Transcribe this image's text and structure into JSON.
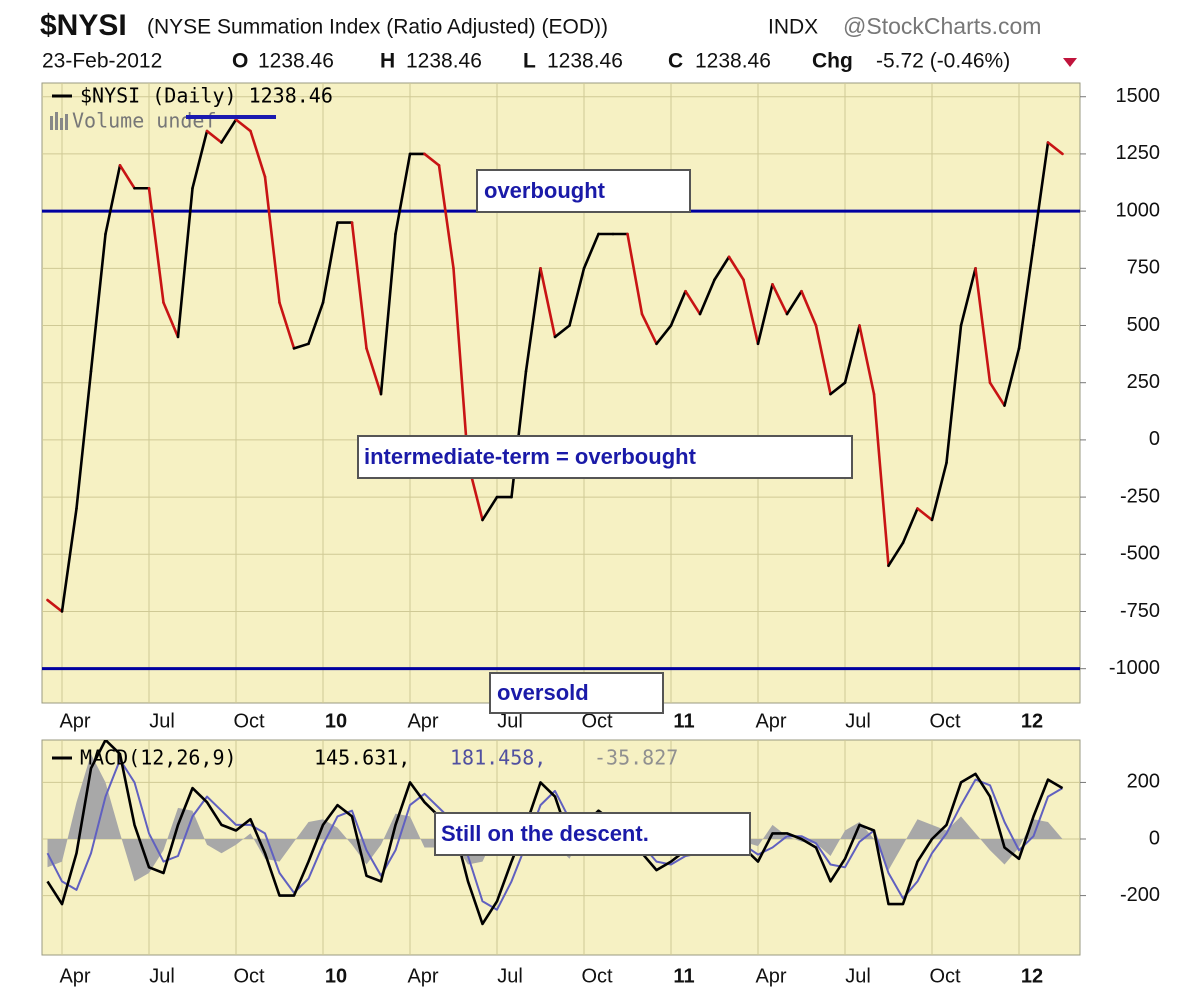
{
  "header": {
    "symbol": "$NYSI",
    "name": "(NYSE Summation Index (Ratio Adjusted) (EOD))",
    "exchange": "INDX",
    "source": "@StockCharts.com",
    "date": "23-Feb-2012",
    "open_key": "O",
    "open": "1238.46",
    "high_key": "H",
    "high": "1238.46",
    "low_key": "L",
    "low": "1238.46",
    "close_key": "C",
    "close": "1238.46",
    "change_key": "Chg",
    "change": "-5.72 (-0.46%)"
  },
  "chart_data": [
    {
      "type": "line",
      "categories": [
        null,
        "Apr",
        null,
        null,
        null,
        null,
        null,
        "Jul",
        null,
        null,
        null,
        null,
        null,
        "Oct",
        null,
        null,
        null,
        null,
        null,
        "10",
        null,
        null,
        null,
        null,
        null,
        "Apr",
        null,
        null,
        null,
        null,
        null,
        "Jul",
        null,
        null,
        null,
        null,
        null,
        "Oct",
        null,
        null,
        null,
        null,
        null,
        "11",
        null,
        null,
        null,
        null,
        null,
        "Apr",
        null,
        null,
        null,
        null,
        null,
        "Jul",
        null,
        null,
        null,
        null,
        null,
        "Oct",
        null,
        null,
        null,
        null,
        null,
        "12",
        null,
        null,
        null
      ],
      "series": [
        {
          "name": "$NYSI (Daily) 1238.46",
          "color": "#000000",
          "falling_color": "#c81414",
          "values": [
            -700,
            -750,
            -300,
            300,
            900,
            1200,
            1100,
            1100,
            600,
            450,
            1100,
            1350,
            1300,
            1400,
            1350,
            1150,
            600,
            400,
            420,
            600,
            950,
            950,
            400,
            200,
            900,
            1250,
            1250,
            1200,
            750,
            -100,
            -350,
            -250,
            -250,
            300,
            750,
            450,
            500,
            750,
            900,
            900,
            900,
            550,
            420,
            500,
            650,
            550,
            700,
            800,
            700,
            420,
            680,
            550,
            650,
            500,
            200,
            250,
            500,
            200,
            -550,
            -450,
            -300,
            -350,
            -100,
            500,
            750,
            250,
            150,
            400,
            850,
            1300,
            1250
          ]
        }
      ],
      "volume_note": "Volume undef",
      "ylim": [
        -1150,
        1560
      ],
      "yticks": [
        1500,
        1250,
        1000,
        750,
        500,
        250,
        0,
        -250,
        -500,
        -750,
        -1000
      ],
      "grid": true,
      "reference_lines": [
        {
          "value": 1000,
          "label": "overbought",
          "color": "#0000a0"
        },
        {
          "value": -1000,
          "label": "oversold",
          "color": "#0000a0"
        }
      ],
      "annotations": [
        "intermediate-term = overbought"
      ]
    },
    {
      "type": "macd",
      "categories": [
        null,
        "Apr",
        null,
        null,
        null,
        null,
        null,
        "Jul",
        null,
        null,
        null,
        null,
        null,
        "Oct",
        null,
        null,
        null,
        null,
        null,
        "10",
        null,
        null,
        null,
        null,
        null,
        "Apr",
        null,
        null,
        null,
        null,
        null,
        "Jul",
        null,
        null,
        null,
        null,
        null,
        "Oct",
        null,
        null,
        null,
        null,
        null,
        "11",
        null,
        null,
        null,
        null,
        null,
        "Apr",
        null,
        null,
        null,
        null,
        null,
        "Jul",
        null,
        null,
        null,
        null,
        null,
        "Oct",
        null,
        null,
        null,
        null,
        null,
        "12",
        null,
        null,
        null
      ],
      "legend_title": "MACD(12,26,9)",
      "legend_values": [
        "145.631,",
        "181.458,",
        "-35.827"
      ],
      "series": [
        {
          "style": "area",
          "color": "#a8a8a8",
          "values": [
            -100,
            -80,
            130,
            300,
            200,
            20,
            -150,
            -120,
            -40,
            110,
            100,
            -20,
            -50,
            -20,
            20,
            -70,
            -80,
            -10,
            60,
            70,
            40,
            -20,
            -90,
            -20,
            90,
            80,
            -30,
            -30,
            -10,
            -90,
            -80,
            30,
            70,
            70,
            80,
            -20,
            -70,
            30,
            30,
            -20,
            -30,
            -30,
            -30,
            10,
            20,
            0,
            20,
            0,
            -10,
            -25,
            50,
            10,
            -10,
            -15,
            -60,
            30,
            60,
            0,
            -110,
            -20,
            70,
            50,
            30,
            80,
            20,
            -40,
            -90,
            -30,
            70,
            60,
            0
          ]
        },
        {
          "style": "line",
          "color": "#6060c0",
          "values": [
            -50,
            -150,
            -180,
            -50,
            150,
            280,
            200,
            20,
            -80,
            -60,
            80,
            150,
            100,
            50,
            50,
            20,
            -120,
            -190,
            -140,
            -20,
            80,
            100,
            -40,
            -130,
            -40,
            120,
            160,
            110,
            60,
            -60,
            -220,
            -250,
            -150,
            -20,
            120,
            170,
            70,
            20,
            70,
            80,
            30,
            -20,
            -80,
            -90,
            -60,
            -50,
            -20,
            0,
            -20,
            -55,
            -30,
            10,
            10,
            -15,
            -90,
            -100,
            -10,
            30,
            -120,
            -210,
            -150,
            -50,
            20,
            120,
            210,
            190,
            60,
            -40,
            10,
            150,
            180
          ]
        },
        {
          "style": "line",
          "color": "#000000",
          "values": [
            -150,
            -230,
            -50,
            250,
            350,
            300,
            50,
            -100,
            -120,
            50,
            180,
            130,
            50,
            30,
            70,
            -50,
            -200,
            -200,
            -80,
            50,
            120,
            80,
            -130,
            -150,
            50,
            200,
            130,
            80,
            50,
            -150,
            -300,
            -220,
            -80,
            50,
            200,
            150,
            0,
            50,
            100,
            60,
            0,
            -50,
            -110,
            -80,
            -40,
            -50,
            0,
            0,
            -30,
            -80,
            20,
            20,
            0,
            -30,
            -150,
            -70,
            50,
            30,
            -230,
            -230,
            -80,
            0,
            50,
            200,
            230,
            150,
            -30,
            -70,
            80,
            210,
            180
          ]
        }
      ],
      "ylim": [
        -410,
        350
      ],
      "yticks": [
        200,
        0,
        -200
      ],
      "grid": true,
      "annotations": [
        "Still on the descent."
      ]
    }
  ]
}
